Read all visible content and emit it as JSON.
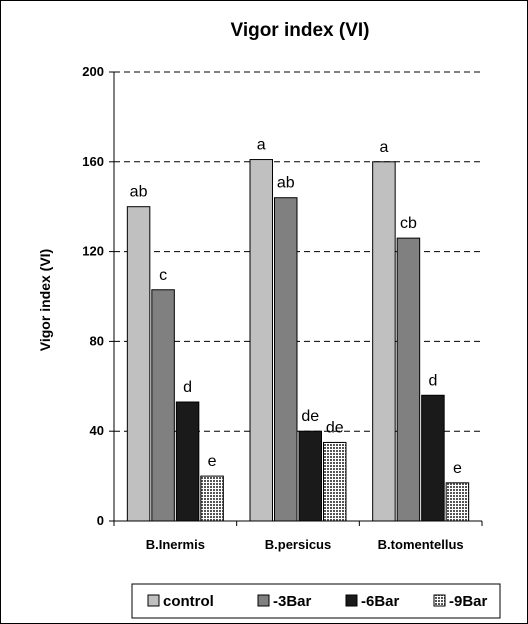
{
  "chart_data": {
    "type": "bar",
    "title": "Vigor index (VI)",
    "ylabel": "Vigor index (VI)",
    "xlabel": "",
    "ylim": [
      0,
      200
    ],
    "yticks": [
      "0",
      "40",
      "80",
      "120",
      "160",
      "200"
    ],
    "grid": "horizontal dashed",
    "legend_position": "bottom",
    "categories": [
      "B.Inermis",
      "B.persicus",
      "B.tomentellus"
    ],
    "series": [
      {
        "name": "control",
        "values": [
          140,
          161,
          160
        ],
        "labels": [
          "ab",
          "a",
          "a"
        ],
        "color": "#c0c0c0"
      },
      {
        "name": "-3Bar",
        "values": [
          103,
          144,
          126
        ],
        "labels": [
          "c",
          "ab",
          "cb"
        ],
        "color": "#808080"
      },
      {
        "name": "-6Bar",
        "values": [
          53,
          40,
          56
        ],
        "labels": [
          "d",
          "de",
          "d"
        ],
        "color": "#1a1a1a"
      },
      {
        "name": "-9Bar",
        "values": [
          20,
          35,
          17
        ],
        "labels": [
          "e",
          "de",
          "e"
        ],
        "color": "pattern-dotted"
      }
    ]
  }
}
